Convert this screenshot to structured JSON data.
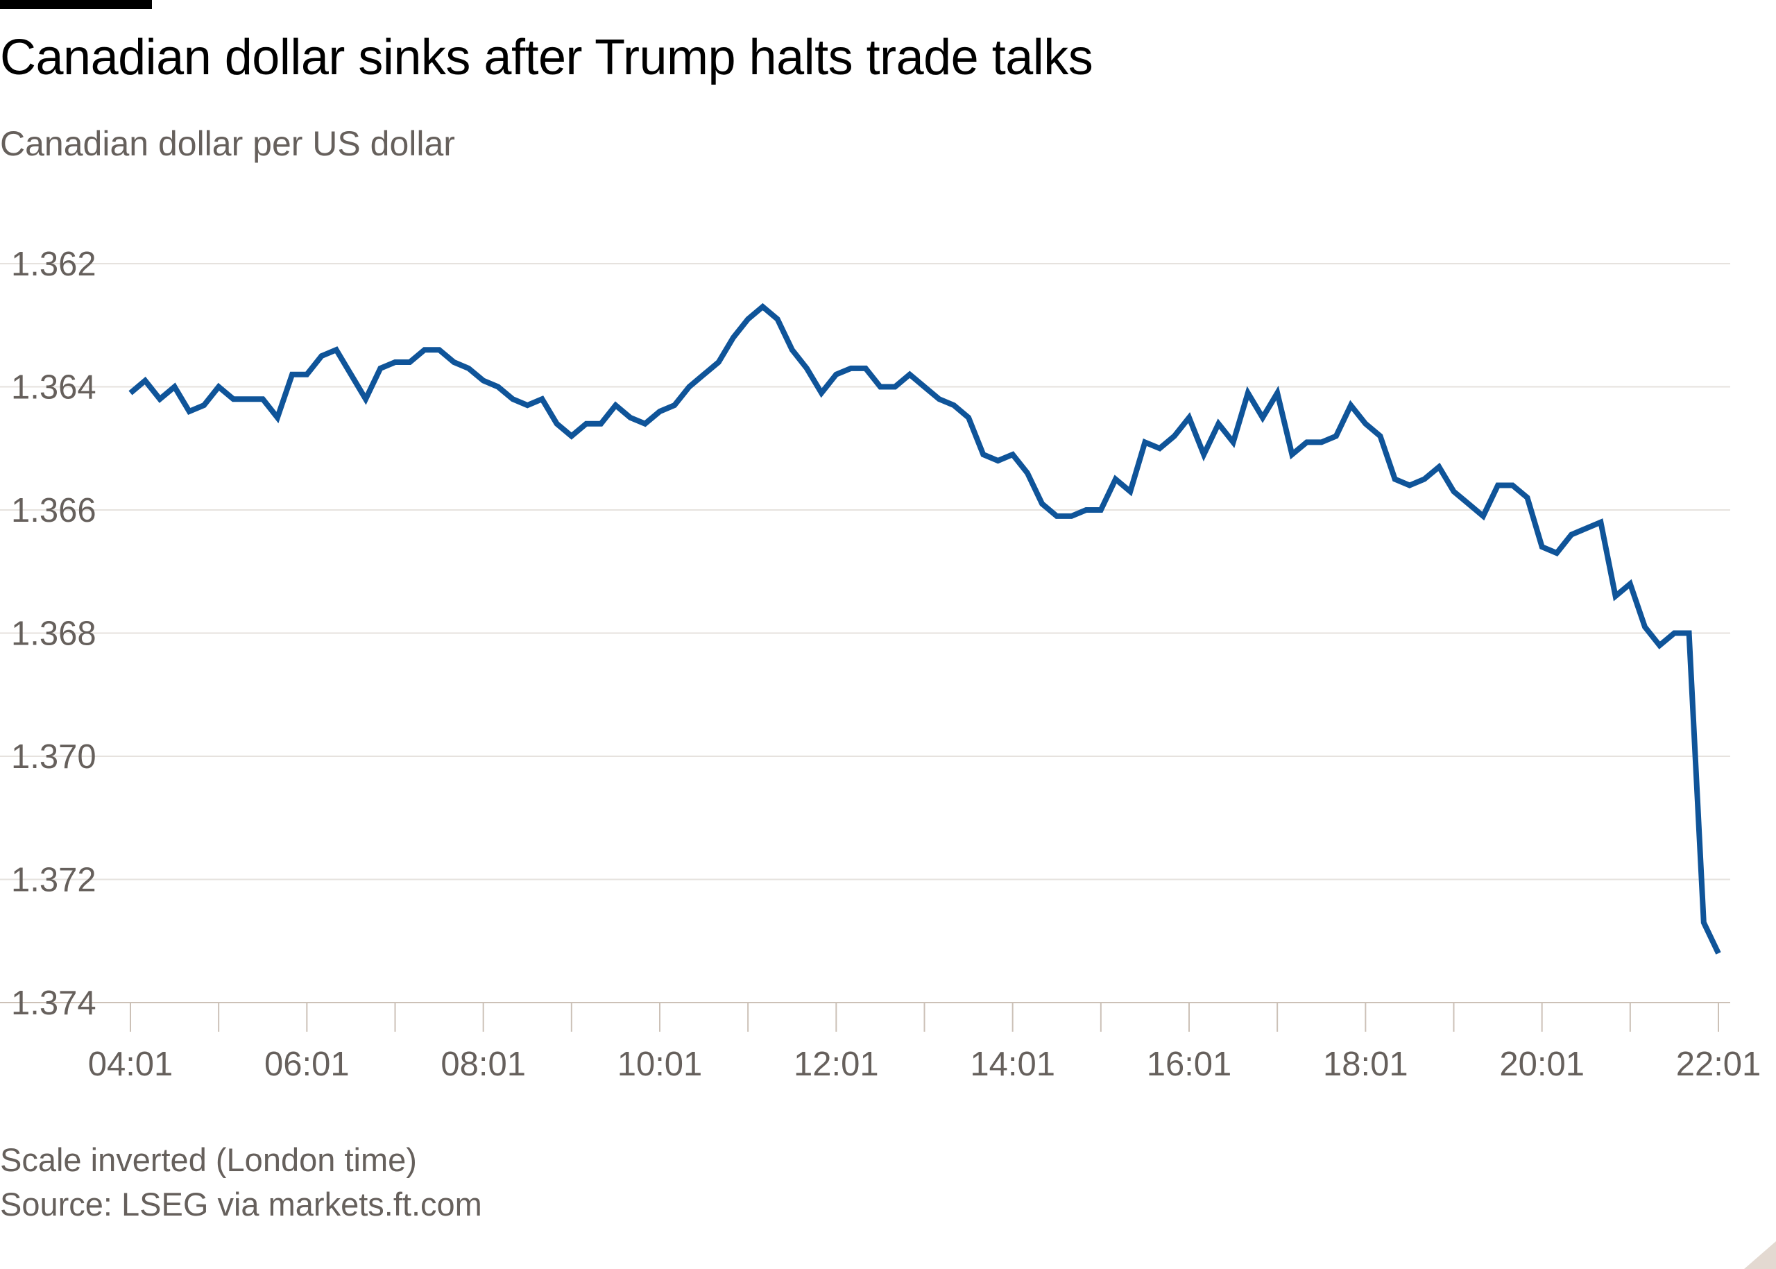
{
  "header": {
    "title": "Canadian dollar sinks after Trump halts trade talks",
    "subtitle": "Canadian dollar per US dollar"
  },
  "footer": {
    "note": "Scale inverted (London time)",
    "source": "Source: LSEG via markets.ft.com"
  },
  "colors": {
    "line": "#0f5499",
    "grid": "#e6e2de",
    "text": "#66605c",
    "accent_bar": "#000000"
  },
  "chart_data": {
    "type": "line",
    "title": "Canadian dollar sinks after Trump halts trade talks",
    "subtitle": "Canadian dollar per US dollar",
    "xlabel": "",
    "ylabel": "",
    "y_inverted": true,
    "ylim": [
      1.362,
      1.374
    ],
    "y_ticks": [
      "1.362",
      "1.364",
      "1.366",
      "1.368",
      "1.370",
      "1.372",
      "1.374"
    ],
    "x_ticks": [
      "04:01",
      "06:01",
      "08:01",
      "10:01",
      "12:01",
      "14:01",
      "16:01",
      "18:01",
      "20:01",
      "22:01"
    ],
    "x_range": [
      "04:01",
      "22:01"
    ],
    "x_interval_minutes": 10,
    "grid": true,
    "series": [
      {
        "values": [
          1.3641,
          1.3639,
          1.3642,
          1.364,
          1.3644,
          1.3643,
          1.364,
          1.3642,
          1.3642,
          1.3642,
          1.3645,
          1.3638,
          1.3638,
          1.3635,
          1.3634,
          1.3638,
          1.3642,
          1.3637,
          1.3636,
          1.3636,
          1.3634,
          1.3634,
          1.3636,
          1.3637,
          1.3639,
          1.364,
          1.3642,
          1.3643,
          1.3642,
          1.3646,
          1.3648,
          1.3646,
          1.3646,
          1.3643,
          1.3645,
          1.3646,
          1.3644,
          1.3643,
          1.364,
          1.3638,
          1.3636,
          1.3632,
          1.3629,
          1.3627,
          1.3629,
          1.3634,
          1.3637,
          1.3641,
          1.3638,
          1.3637,
          1.3637,
          1.364,
          1.364,
          1.3638,
          1.364,
          1.3642,
          1.3643,
          1.3645,
          1.3651,
          1.3652,
          1.3651,
          1.3654,
          1.3659,
          1.3661,
          1.3661,
          1.366,
          1.366,
          1.3655,
          1.3657,
          1.3649,
          1.365,
          1.3648,
          1.3645,
          1.3651,
          1.3646,
          1.3649,
          1.3641,
          1.3645,
          1.3641,
          1.3651,
          1.3649,
          1.3649,
          1.3648,
          1.3643,
          1.3646,
          1.3648,
          1.3655,
          1.3656,
          1.3655,
          1.3653,
          1.3657,
          1.3659,
          1.3661,
          1.3656,
          1.3656,
          1.3658,
          1.3666,
          1.3667,
          1.3664,
          1.3663,
          1.3662,
          1.3674,
          1.3672,
          1.3679,
          1.3682,
          1.368,
          1.368,
          1.3727,
          1.3732
        ]
      }
    ]
  }
}
